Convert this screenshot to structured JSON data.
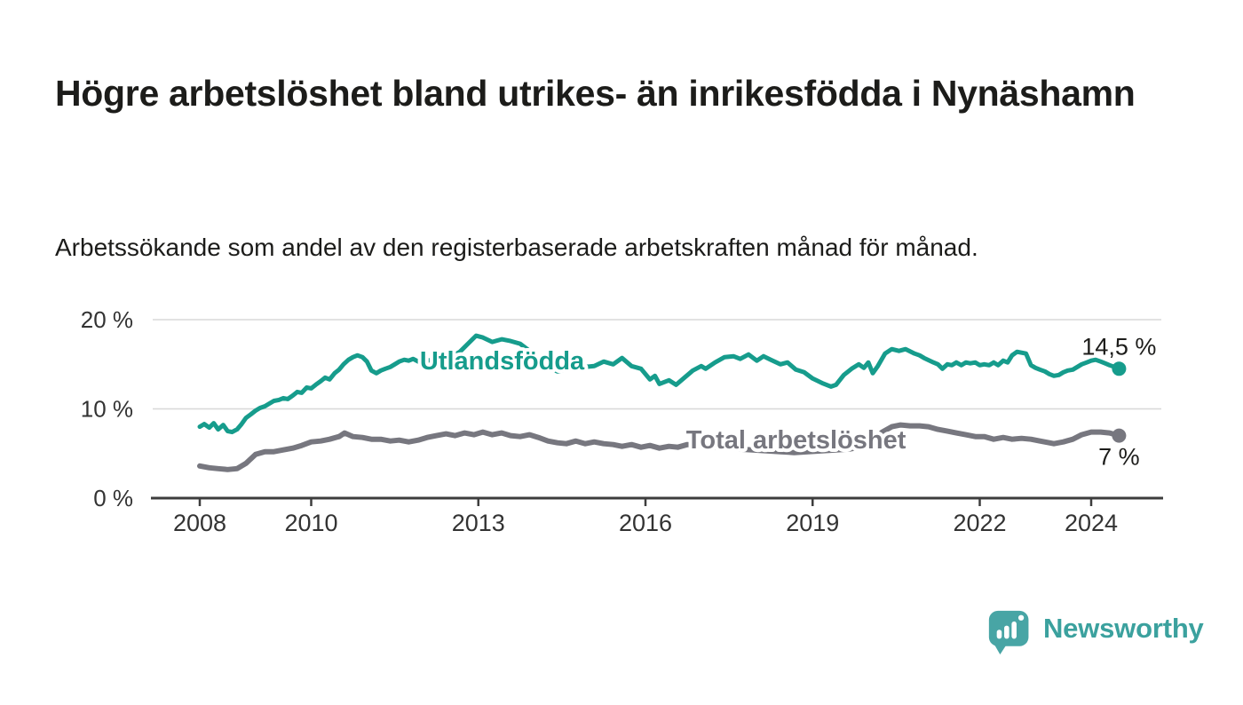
{
  "chart_data": {
    "type": "line",
    "title": "Högre arbetslöshet bland utrikes- än inrikesfödda i Nynäshamn",
    "subtitle": "Arbetssökande som andel av den registerbaserade arbetskraften månad för månad.",
    "unit": "%",
    "grid": "horizontal",
    "legend": "inline-labels",
    "x_axis": {
      "range": [
        2007.1,
        2025.3
      ],
      "ticks": [
        {
          "value": 2008,
          "label": "2008"
        },
        {
          "value": 2010,
          "label": "2010"
        },
        {
          "value": 2013,
          "label": "2013"
        },
        {
          "value": 2016,
          "label": "2016"
        },
        {
          "value": 2019,
          "label": "2019"
        },
        {
          "value": 2022,
          "label": "2022"
        },
        {
          "value": 2024,
          "label": "2024"
        }
      ]
    },
    "y_axis": {
      "range": [
        0,
        20
      ],
      "ticks": [
        {
          "value": 0,
          "label": "0 %"
        },
        {
          "value": 10,
          "label": "10 %"
        },
        {
          "value": 20,
          "label": "20 %"
        }
      ]
    },
    "series": [
      {
        "id": "utlandsfodda",
        "name": "Utlandsfödda",
        "color": "#169c8c",
        "width": 5,
        "label_at": [
          2011.95,
          14.45
        ],
        "end_value": 14.5,
        "end_label": "14,5 %",
        "end_label_offset": [
          0,
          -16
        ],
        "points": [
          [
            2008,
            8
          ],
          [
            2008.08,
            8.3
          ],
          [
            2008.17,
            7.9
          ],
          [
            2008.25,
            8.4
          ],
          [
            2008.33,
            7.7
          ],
          [
            2008.42,
            8.2
          ],
          [
            2008.5,
            7.5
          ],
          [
            2008.58,
            7.4
          ],
          [
            2008.67,
            7.7
          ],
          [
            2008.75,
            8.3
          ],
          [
            2008.83,
            9
          ],
          [
            2008.92,
            9.4
          ],
          [
            2009,
            9.8
          ],
          [
            2009.08,
            10.1
          ],
          [
            2009.17,
            10.3
          ],
          [
            2009.25,
            10.6
          ],
          [
            2009.33,
            10.9
          ],
          [
            2009.42,
            11
          ],
          [
            2009.5,
            11.2
          ],
          [
            2009.58,
            11.1
          ],
          [
            2009.67,
            11.5
          ],
          [
            2009.75,
            11.9
          ],
          [
            2009.83,
            11.8
          ],
          [
            2009.92,
            12.4
          ],
          [
            2010,
            12.3
          ],
          [
            2010.08,
            12.7
          ],
          [
            2010.17,
            13.1
          ],
          [
            2010.25,
            13.5
          ],
          [
            2010.33,
            13.3
          ],
          [
            2010.42,
            14
          ],
          [
            2010.5,
            14.4
          ],
          [
            2010.58,
            15
          ],
          [
            2010.67,
            15.5
          ],
          [
            2010.75,
            15.8
          ],
          [
            2010.83,
            16
          ],
          [
            2010.92,
            15.8
          ],
          [
            2011,
            15.3
          ],
          [
            2011.08,
            14.3
          ],
          [
            2011.17,
            14
          ],
          [
            2011.25,
            14.3
          ],
          [
            2011.33,
            14.5
          ],
          [
            2011.42,
            14.7
          ],
          [
            2011.5,
            15
          ],
          [
            2011.58,
            15.3
          ],
          [
            2011.67,
            15.5
          ],
          [
            2011.75,
            15.4
          ],
          [
            2011.83,
            15.6
          ],
          [
            2011.92,
            15.3
          ],
          [
            2012,
            15.3
          ],
          [
            2012.17,
            15.5
          ],
          [
            2012.33,
            15.4
          ],
          [
            2012.5,
            15.8
          ],
          [
            2012.67,
            16.4
          ],
          [
            2012.83,
            17.4
          ],
          [
            2012.96,
            18.2
          ],
          [
            2013.08,
            18
          ],
          [
            2013.25,
            17.5
          ],
          [
            2013.42,
            17.8
          ],
          [
            2013.58,
            17.6
          ],
          [
            2013.75,
            17.3
          ],
          [
            2013.92,
            16.5
          ],
          [
            2014.08,
            15.5
          ],
          [
            2014.25,
            14.7
          ],
          [
            2014.42,
            14.2
          ],
          [
            2014.58,
            14.4
          ],
          [
            2014.75,
            14.6
          ],
          [
            2014.92,
            14.7
          ],
          [
            2015.08,
            14.8
          ],
          [
            2015.25,
            15.3
          ],
          [
            2015.42,
            15
          ],
          [
            2015.58,
            15.7
          ],
          [
            2015.75,
            14.8
          ],
          [
            2015.92,
            14.5
          ],
          [
            2016,
            13.9
          ],
          [
            2016.08,
            13.3
          ],
          [
            2016.17,
            13.7
          ],
          [
            2016.25,
            12.8
          ],
          [
            2016.42,
            13.2
          ],
          [
            2016.55,
            12.7
          ],
          [
            2016.7,
            13.5
          ],
          [
            2016.85,
            14.3
          ],
          [
            2017,
            14.8
          ],
          [
            2017.08,
            14.5
          ],
          [
            2017.25,
            15.2
          ],
          [
            2017.42,
            15.8
          ],
          [
            2017.58,
            15.9
          ],
          [
            2017.7,
            15.6
          ],
          [
            2017.85,
            16.1
          ],
          [
            2018,
            15.4
          ],
          [
            2018.12,
            15.9
          ],
          [
            2018.25,
            15.5
          ],
          [
            2018.42,
            15
          ],
          [
            2018.55,
            15.2
          ],
          [
            2018.7,
            14.4
          ],
          [
            2018.85,
            14.1
          ],
          [
            2019,
            13.4
          ],
          [
            2019.17,
            12.9
          ],
          [
            2019.33,
            12.5
          ],
          [
            2019.42,
            12.7
          ],
          [
            2019.56,
            13.8
          ],
          [
            2019.7,
            14.5
          ],
          [
            2019.83,
            15
          ],
          [
            2019.92,
            14.6
          ],
          [
            2020,
            15.2
          ],
          [
            2020.08,
            14
          ],
          [
            2020.17,
            14.8
          ],
          [
            2020.3,
            16.2
          ],
          [
            2020.42,
            16.7
          ],
          [
            2020.55,
            16.5
          ],
          [
            2020.67,
            16.7
          ],
          [
            2020.83,
            16.2
          ],
          [
            2020.92,
            16
          ],
          [
            2021,
            15.7
          ],
          [
            2021.17,
            15.2
          ],
          [
            2021.25,
            15
          ],
          [
            2021.33,
            14.5
          ],
          [
            2021.42,
            15
          ],
          [
            2021.5,
            14.9
          ],
          [
            2021.58,
            15.2
          ],
          [
            2021.67,
            14.9
          ],
          [
            2021.75,
            15.2
          ],
          [
            2021.83,
            15.1
          ],
          [
            2021.92,
            15.2
          ],
          [
            2022,
            14.9
          ],
          [
            2022.08,
            15
          ],
          [
            2022.17,
            14.9
          ],
          [
            2022.25,
            15.2
          ],
          [
            2022.33,
            14.9
          ],
          [
            2022.42,
            15.4
          ],
          [
            2022.5,
            15.2
          ],
          [
            2022.58,
            16
          ],
          [
            2022.67,
            16.4
          ],
          [
            2022.75,
            16.3
          ],
          [
            2022.83,
            16.2
          ],
          [
            2022.92,
            14.9
          ],
          [
            2023,
            14.6
          ],
          [
            2023.08,
            14.4
          ],
          [
            2023.17,
            14.2
          ],
          [
            2023.25,
            13.9
          ],
          [
            2023.33,
            13.7
          ],
          [
            2023.42,
            13.8
          ],
          [
            2023.5,
            14.1
          ],
          [
            2023.58,
            14.3
          ],
          [
            2023.67,
            14.4
          ],
          [
            2023.75,
            14.7
          ],
          [
            2023.83,
            15
          ],
          [
            2023.92,
            15.2
          ],
          [
            2024,
            15.4
          ],
          [
            2024.08,
            15.5
          ],
          [
            2024.17,
            15.3
          ],
          [
            2024.25,
            15.1
          ],
          [
            2024.33,
            14.9
          ],
          [
            2024.42,
            14.7
          ],
          [
            2024.5,
            14.5
          ]
        ]
      },
      {
        "id": "total",
        "name": "Total arbetslöshet",
        "color": "#77777f",
        "width": 6,
        "label_at": [
          2016.73,
          5.55
        ],
        "end_value": 7.0,
        "end_label": "7 %",
        "end_label_offset": [
          0,
          33
        ],
        "points": [
          [
            2008,
            3.6
          ],
          [
            2008.17,
            3.4
          ],
          [
            2008.33,
            3.3
          ],
          [
            2008.5,
            3.2
          ],
          [
            2008.67,
            3.3
          ],
          [
            2008.83,
            3.9
          ],
          [
            2009,
            4.9
          ],
          [
            2009.17,
            5.2
          ],
          [
            2009.33,
            5.2
          ],
          [
            2009.5,
            5.4
          ],
          [
            2009.67,
            5.6
          ],
          [
            2009.83,
            5.9
          ],
          [
            2010,
            6.3
          ],
          [
            2010.17,
            6.4
          ],
          [
            2010.33,
            6.6
          ],
          [
            2010.5,
            6.9
          ],
          [
            2010.6,
            7.3
          ],
          [
            2010.75,
            6.9
          ],
          [
            2010.92,
            6.8
          ],
          [
            2011.08,
            6.6
          ],
          [
            2011.25,
            6.6
          ],
          [
            2011.42,
            6.4
          ],
          [
            2011.58,
            6.5
          ],
          [
            2011.75,
            6.3
          ],
          [
            2011.92,
            6.5
          ],
          [
            2012.08,
            6.8
          ],
          [
            2012.25,
            7
          ],
          [
            2012.42,
            7.2
          ],
          [
            2012.58,
            7
          ],
          [
            2012.75,
            7.3
          ],
          [
            2012.92,
            7.1
          ],
          [
            2013.08,
            7.4
          ],
          [
            2013.25,
            7.1
          ],
          [
            2013.42,
            7.3
          ],
          [
            2013.58,
            7
          ],
          [
            2013.75,
            6.9
          ],
          [
            2013.92,
            7.1
          ],
          [
            2014.08,
            6.8
          ],
          [
            2014.25,
            6.4
          ],
          [
            2014.42,
            6.2
          ],
          [
            2014.58,
            6.1
          ],
          [
            2014.75,
            6.4
          ],
          [
            2014.92,
            6.1
          ],
          [
            2015.08,
            6.3
          ],
          [
            2015.25,
            6.1
          ],
          [
            2015.42,
            6
          ],
          [
            2015.58,
            5.8
          ],
          [
            2015.75,
            6
          ],
          [
            2015.92,
            5.7
          ],
          [
            2016.08,
            5.9
          ],
          [
            2016.25,
            5.6
          ],
          [
            2016.42,
            5.8
          ],
          [
            2016.58,
            5.7
          ],
          [
            2016.75,
            6
          ],
          [
            2016.92,
            5.9
          ],
          [
            2017.17,
            5.8
          ],
          [
            2017.42,
            5.6
          ],
          [
            2017.67,
            5.5
          ],
          [
            2017.92,
            5.4
          ],
          [
            2018.17,
            5.3
          ],
          [
            2018.42,
            5.2
          ],
          [
            2018.67,
            5.1
          ],
          [
            2018.92,
            5.2
          ],
          [
            2019.17,
            5.3
          ],
          [
            2019.42,
            5.4
          ],
          [
            2019.67,
            5.5
          ],
          [
            2019.92,
            5.8
          ],
          [
            2020.08,
            6.4
          ],
          [
            2020.25,
            7.4
          ],
          [
            2020.42,
            8
          ],
          [
            2020.58,
            8.2
          ],
          [
            2020.75,
            8.1
          ],
          [
            2020.92,
            8.1
          ],
          [
            2021.08,
            8
          ],
          [
            2021.25,
            7.7
          ],
          [
            2021.42,
            7.5
          ],
          [
            2021.58,
            7.3
          ],
          [
            2021.75,
            7.1
          ],
          [
            2021.92,
            6.9
          ],
          [
            2022.08,
            6.9
          ],
          [
            2022.25,
            6.6
          ],
          [
            2022.42,
            6.8
          ],
          [
            2022.58,
            6.6
          ],
          [
            2022.75,
            6.7
          ],
          [
            2022.92,
            6.6
          ],
          [
            2023.08,
            6.4
          ],
          [
            2023.25,
            6.2
          ],
          [
            2023.33,
            6.1
          ],
          [
            2023.5,
            6.3
          ],
          [
            2023.67,
            6.6
          ],
          [
            2023.83,
            7.1
          ],
          [
            2024,
            7.4
          ],
          [
            2024.17,
            7.4
          ],
          [
            2024.33,
            7.3
          ],
          [
            2024.5,
            7
          ]
        ]
      }
    ],
    "colors": {
      "accent_teal": "#169c8c",
      "series_gray": "#77777f",
      "axis": "#3d3d3d",
      "gridline": "#d8d8d8",
      "text_dark": "#1c1c1a"
    }
  },
  "footer": {
    "brand": "Newsworthy",
    "logo_bubble_color": "#48a5a5",
    "logo_text_color": "#3ba19e"
  }
}
